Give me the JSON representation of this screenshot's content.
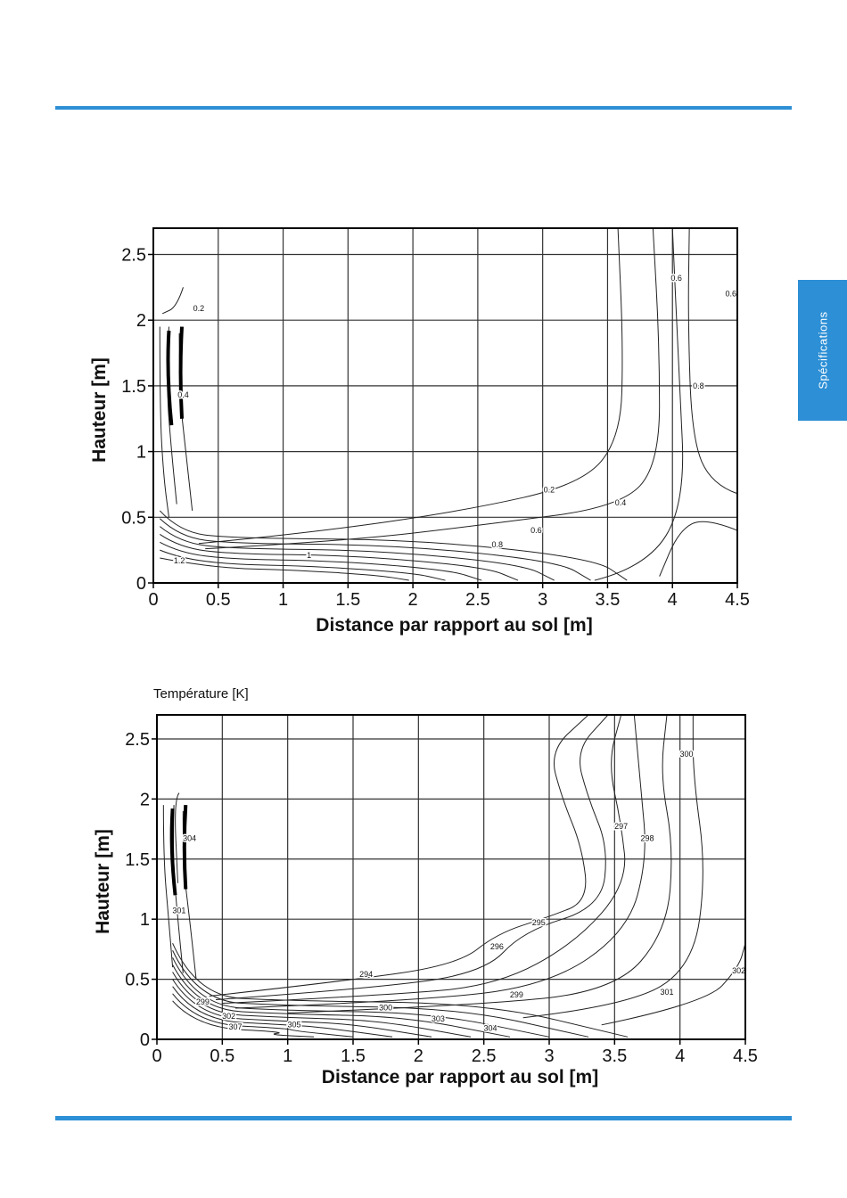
{
  "side_tab": {
    "label": "Spécifications"
  },
  "chart_data": [
    {
      "type": "contour",
      "title": "",
      "xlabel": "Distance par rapport au sol [m]",
      "ylabel": "Hauteur [m]",
      "xlim": [
        0,
        4.5
      ],
      "ylim": [
        0,
        2.7
      ],
      "xticks": [
        0,
        0.5,
        1,
        1.5,
        2,
        2.5,
        3,
        3.5,
        4,
        4.5
      ],
      "yticks": [
        0,
        0.5,
        1,
        1.5,
        2,
        2.5
      ],
      "grid": true,
      "contour_labels": [
        {
          "label": "0.2",
          "x": 3.05,
          "y": 0.69
        },
        {
          "label": "0.4",
          "x": 3.6,
          "y": 0.59
        },
        {
          "label": "0.6",
          "x": 2.95,
          "y": 0.38
        },
        {
          "label": "0.8",
          "x": 2.65,
          "y": 0.27
        },
        {
          "label": "1",
          "x": 1.2,
          "y": 0.19
        },
        {
          "label": "1.2",
          "x": 0.2,
          "y": 0.15
        },
        {
          "label": "0.4",
          "x": 0.23,
          "y": 1.41
        },
        {
          "label": "0.2",
          "x": 0.35,
          "y": 2.07
        },
        {
          "label": "0.6",
          "x": 4.03,
          "y": 2.3
        },
        {
          "label": "0.8",
          "x": 4.2,
          "y": 1.48
        },
        {
          "label": "0.6",
          "x": 4.45,
          "y": 2.18
        }
      ]
    },
    {
      "type": "contour",
      "title": "Température [K]",
      "xlabel": "Distance par rapport au sol [m]",
      "ylabel": "Hauteur [m]",
      "xlim": [
        0,
        4.5
      ],
      "ylim": [
        0,
        2.7
      ],
      "xticks": [
        0,
        0.5,
        1,
        1.5,
        2,
        2.5,
        3,
        3.5,
        4,
        4.5
      ],
      "yticks": [
        0,
        0.5,
        1,
        1.5,
        2,
        2.5
      ],
      "grid": true,
      "contour_labels": [
        {
          "label": "294",
          "x": 1.6,
          "y": 0.52
        },
        {
          "label": "299",
          "x": 2.75,
          "y": 0.35
        },
        {
          "label": "300",
          "x": 1.75,
          "y": 0.24
        },
        {
          "label": "301",
          "x": 3.9,
          "y": 0.37
        },
        {
          "label": "303",
          "x": 2.15,
          "y": 0.15
        },
        {
          "label": "304",
          "x": 2.55,
          "y": 0.07
        },
        {
          "label": "305",
          "x": 1.05,
          "y": 0.1
        },
        {
          "label": "307",
          "x": 0.6,
          "y": 0.08
        },
        {
          "label": "302",
          "x": 0.55,
          "y": 0.17
        },
        {
          "label": "299",
          "x": 0.35,
          "y": 0.29
        },
        {
          "label": "295",
          "x": 2.92,
          "y": 0.95
        },
        {
          "label": "296",
          "x": 2.6,
          "y": 0.75
        },
        {
          "label": "297",
          "x": 3.55,
          "y": 1.75
        },
        {
          "label": "298",
          "x": 3.75,
          "y": 1.65
        },
        {
          "label": "300",
          "x": 4.05,
          "y": 2.35
        },
        {
          "label": "302",
          "x": 4.45,
          "y": 0.55
        },
        {
          "label": "301",
          "x": 0.17,
          "y": 1.05
        },
        {
          "label": "304",
          "x": 0.25,
          "y": 1.65
        }
      ]
    }
  ]
}
